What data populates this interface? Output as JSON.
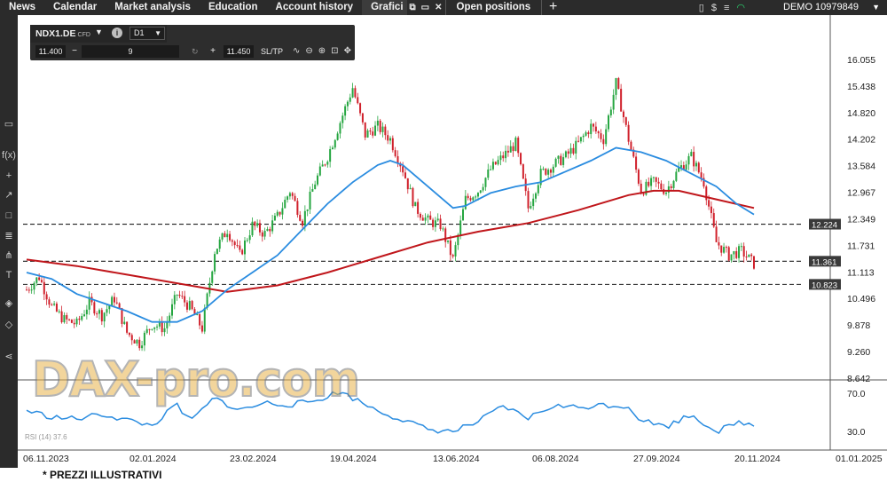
{
  "nav": {
    "items": [
      "News",
      "Calendar",
      "Market analysis",
      "Education",
      "Account history"
    ],
    "active_tab": "Grafici",
    "open_positions": "Open positions",
    "account": "DEMO 10979849"
  },
  "instrument": {
    "name": "NDX1.DE",
    "type": "CFD",
    "timeframe": "D1",
    "bid": "11.400",
    "quantity": "9",
    "ask": "11.450",
    "sltp_label": "SL/TP"
  },
  "watermark": "DAX-pro.com",
  "rsi_label": "RSI (14) 37.6",
  "disclaimer": "* PREZZI ILLUSTRATIVI",
  "colors": {
    "bull": "#26a641",
    "bear": "#d0202b",
    "ma_short": "#2a8ce0",
    "ma_long": "#c0161b",
    "rsi": "#2a8ce0"
  },
  "chart_data": {
    "type": "candlestick",
    "y_ticks": [
      "16.055",
      "15.438",
      "14.820",
      "14.202",
      "13.584",
      "12.967",
      "12.349",
      "11.731",
      "11.113",
      "10.496",
      "9.878",
      "9.260",
      "8.642"
    ],
    "y_tick_values": [
      16.055,
      15.438,
      14.82,
      14.202,
      13.584,
      12.967,
      12.349,
      11.731,
      11.113,
      10.496,
      9.878,
      9.26,
      8.642
    ],
    "ylim": [
      8.642,
      16.055
    ],
    "x_ticks": [
      "06.11.2023",
      "02.01.2024",
      "23.02.2024",
      "19.04.2024",
      "13.06.2024",
      "06.08.2024",
      "27.09.2024",
      "20.11.2024",
      "01.01.2025"
    ],
    "horizontal_lines": [
      {
        "value": 12.224,
        "label": "12.224"
      },
      {
        "value": 11.361,
        "label": "11.361"
      },
      {
        "value": 10.823,
        "label": "10.823"
      }
    ],
    "rsi_ticks": [
      "70.0",
      "30.0"
    ],
    "rsi_tick_values": [
      70,
      30
    ],
    "price_path": [
      [
        0,
        10.7
      ],
      [
        5,
        11.0
      ],
      [
        10,
        10.3
      ],
      [
        15,
        10.0
      ],
      [
        20,
        9.9
      ],
      [
        25,
        10.4
      ],
      [
        30,
        10.1
      ],
      [
        35,
        10.5
      ],
      [
        40,
        9.7
      ],
      [
        45,
        9.45
      ],
      [
        50,
        9.9
      ],
      [
        55,
        9.8
      ],
      [
        60,
        10.6
      ],
      [
        65,
        10.3
      ],
      [
        70,
        9.8
      ],
      [
        75,
        11.6
      ],
      [
        80,
        12.1
      ],
      [
        85,
        11.5
      ],
      [
        90,
        12.2
      ],
      [
        95,
        12.0
      ],
      [
        100,
        12.4
      ],
      [
        105,
        13.0
      ],
      [
        110,
        12.3
      ],
      [
        115,
        13.2
      ],
      [
        120,
        13.8
      ],
      [
        125,
        14.6
      ],
      [
        130,
        15.4
      ],
      [
        135,
        14.3
      ],
      [
        140,
        14.5
      ],
      [
        145,
        14.2
      ],
      [
        150,
        13.5
      ],
      [
        155,
        12.6
      ],
      [
        160,
        12.3
      ],
      [
        165,
        12.2
      ],
      [
        170,
        11.4
      ],
      [
        175,
        12.8
      ],
      [
        180,
        13.0
      ],
      [
        185,
        13.5
      ],
      [
        190,
        13.8
      ],
      [
        195,
        14.1
      ],
      [
        200,
        12.6
      ],
      [
        205,
        13.4
      ],
      [
        210,
        13.6
      ],
      [
        215,
        13.8
      ],
      [
        220,
        14.1
      ],
      [
        225,
        14.5
      ],
      [
        230,
        14.2
      ],
      [
        235,
        15.5
      ],
      [
        240,
        14.2
      ],
      [
        245,
        13.0
      ],
      [
        250,
        13.2
      ],
      [
        255,
        13.0
      ],
      [
        260,
        13.5
      ],
      [
        265,
        13.8
      ],
      [
        270,
        13.2
      ],
      [
        275,
        11.8
      ],
      [
        280,
        11.5
      ],
      [
        285,
        11.6
      ],
      [
        290,
        11.3
      ]
    ],
    "ma_short_path": [
      [
        0,
        11.1
      ],
      [
        10,
        10.95
      ],
      [
        20,
        10.6
      ],
      [
        30,
        10.4
      ],
      [
        40,
        10.2
      ],
      [
        50,
        9.95
      ],
      [
        60,
        9.95
      ],
      [
        70,
        10.2
      ],
      [
        80,
        10.7
      ],
      [
        90,
        11.1
      ],
      [
        100,
        11.5
      ],
      [
        110,
        12.1
      ],
      [
        120,
        12.7
      ],
      [
        130,
        13.2
      ],
      [
        140,
        13.6
      ],
      [
        145,
        13.7
      ],
      [
        150,
        13.6
      ],
      [
        160,
        13.1
      ],
      [
        170,
        12.6
      ],
      [
        175,
        12.65
      ],
      [
        185,
        12.95
      ],
      [
        195,
        13.1
      ],
      [
        205,
        13.2
      ],
      [
        215,
        13.45
      ],
      [
        225,
        13.7
      ],
      [
        235,
        14.0
      ],
      [
        245,
        13.9
      ],
      [
        255,
        13.7
      ],
      [
        265,
        13.4
      ],
      [
        275,
        13.1
      ],
      [
        283,
        12.7
      ],
      [
        290,
        12.45
      ]
    ],
    "ma_long_path": [
      [
        0,
        11.4
      ],
      [
        20,
        11.25
      ],
      [
        40,
        11.05
      ],
      [
        60,
        10.85
      ],
      [
        80,
        10.65
      ],
      [
        100,
        10.8
      ],
      [
        120,
        11.1
      ],
      [
        140,
        11.45
      ],
      [
        160,
        11.8
      ],
      [
        180,
        12.05
      ],
      [
        200,
        12.25
      ],
      [
        220,
        12.55
      ],
      [
        240,
        12.9
      ],
      [
        250,
        13.0
      ],
      [
        260,
        13.0
      ],
      [
        275,
        12.8
      ],
      [
        290,
        12.6
      ]
    ],
    "rsi_path": [
      [
        0,
        52
      ],
      [
        10,
        45
      ],
      [
        20,
        43
      ],
      [
        30,
        48
      ],
      [
        40,
        42
      ],
      [
        50,
        36
      ],
      [
        60,
        58
      ],
      [
        65,
        40
      ],
      [
        75,
        65
      ],
      [
        85,
        52
      ],
      [
        95,
        60
      ],
      [
        105,
        58
      ],
      [
        115,
        62
      ],
      [
        125,
        72
      ],
      [
        130,
        65
      ],
      [
        140,
        52
      ],
      [
        150,
        42
      ],
      [
        160,
        32
      ],
      [
        170,
        30
      ],
      [
        180,
        40
      ],
      [
        190,
        56
      ],
      [
        200,
        44
      ],
      [
        210,
        57
      ],
      [
        220,
        55
      ],
      [
        230,
        58
      ],
      [
        240,
        56
      ],
      [
        245,
        42
      ],
      [
        255,
        35
      ],
      [
        265,
        48
      ],
      [
        275,
        30
      ],
      [
        285,
        40
      ],
      [
        290,
        36
      ]
    ]
  }
}
